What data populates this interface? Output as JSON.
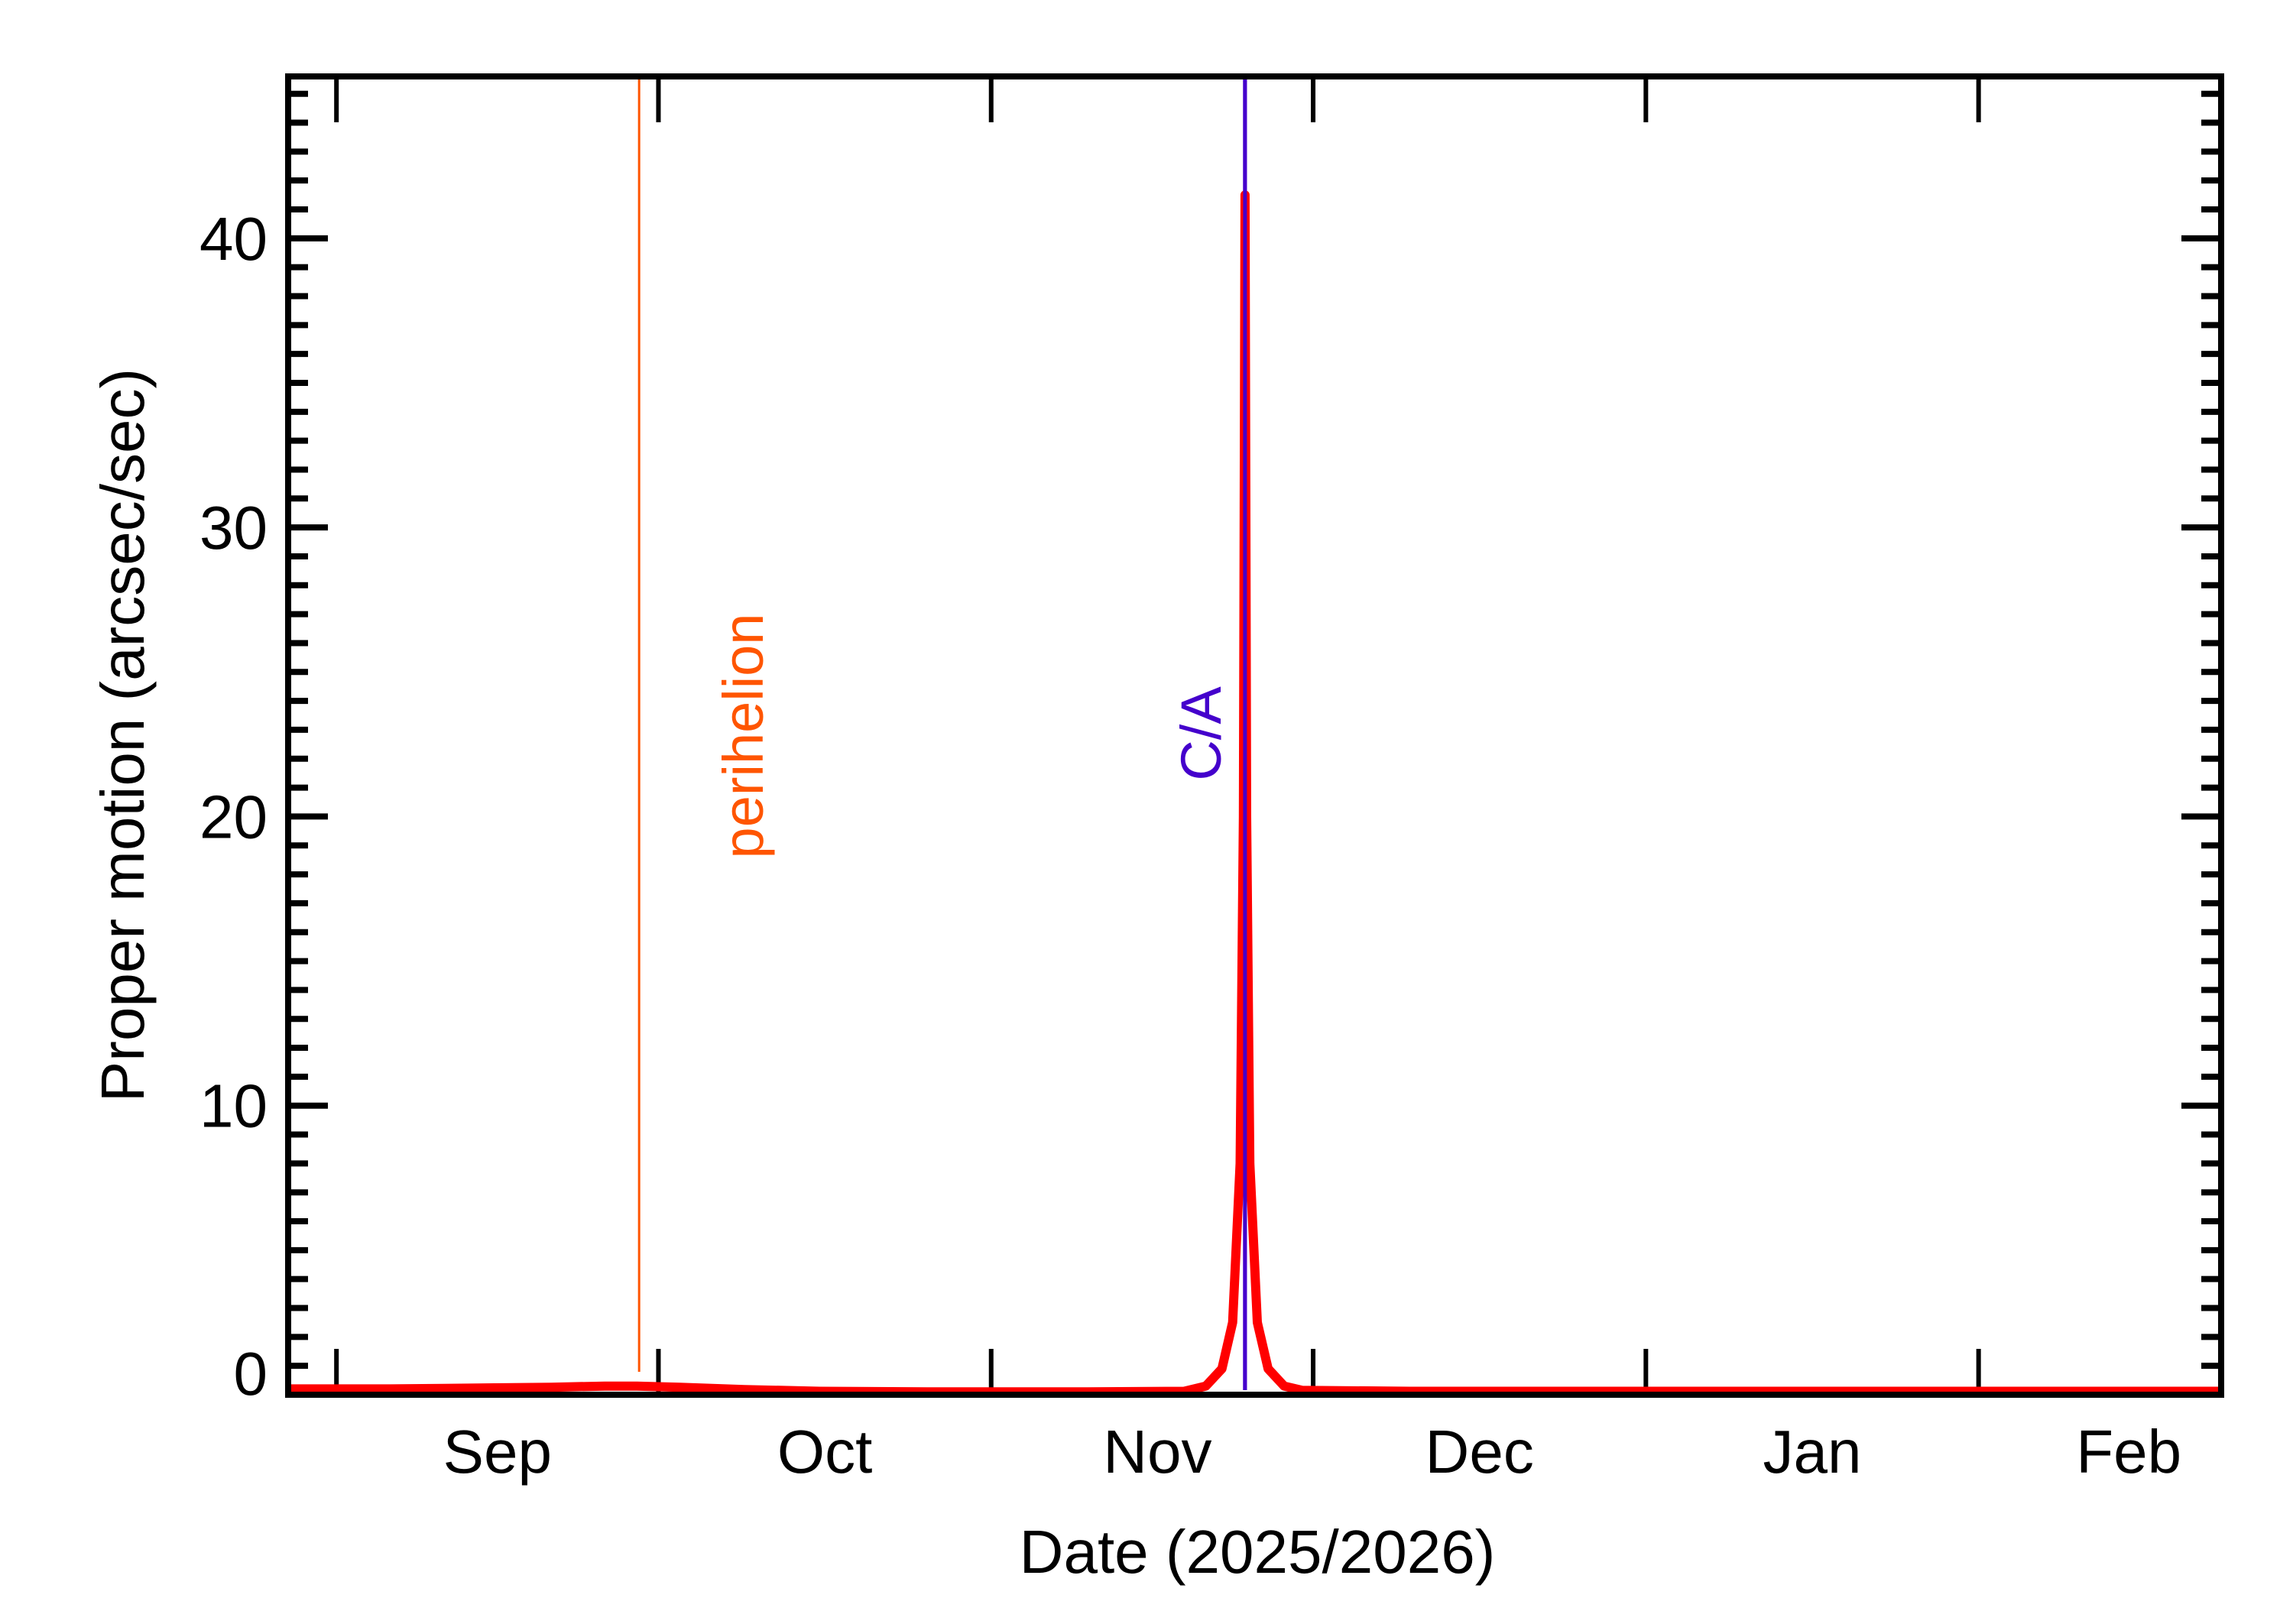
{
  "chart_data": {
    "type": "line",
    "title": "",
    "xlabel": "Date (2025/2026)",
    "ylabel": "Proper motion (arcsec/sec)",
    "x_unit": "days since 2025-09-01",
    "xlim": [
      -4.5,
      175.6
    ],
    "ylim": [
      0,
      45.6
    ],
    "grid": false,
    "legend": null,
    "x_ticks": [
      {
        "day": 0,
        "label": "Sep 1"
      },
      {
        "day": 30,
        "label": "Oct 1"
      },
      {
        "day": 61,
        "label": "Nov 1"
      },
      {
        "day": 91,
        "label": "Dec 1"
      },
      {
        "day": 122,
        "label": "Jan 1"
      },
      {
        "day": 153,
        "label": "Feb 1"
      }
    ],
    "x_tick_labels": [
      {
        "text": "Sep",
        "day": 15
      },
      {
        "text": "Oct",
        "day": 45.5
      },
      {
        "text": "Nov",
        "day": 76.5
      },
      {
        "text": "Dec",
        "day": 106.5
      },
      {
        "text": "Jan",
        "day": 137.5
      },
      {
        "text": "Feb",
        "day": 167
      }
    ],
    "y_ticks": [
      0,
      10,
      20,
      30,
      40
    ],
    "y_minor_step": 1,
    "series": [
      {
        "name": "Proper motion",
        "color": "#ff0000",
        "points": [
          [
            -4.5,
            0.2
          ],
          [
            5,
            0.2
          ],
          [
            10,
            0.22
          ],
          [
            20,
            0.26
          ],
          [
            25,
            0.3
          ],
          [
            28,
            0.3
          ],
          [
            32,
            0.26
          ],
          [
            38,
            0.18
          ],
          [
            45,
            0.12
          ],
          [
            55,
            0.1
          ],
          [
            70,
            0.1
          ],
          [
            79,
            0.12
          ],
          [
            81,
            0.3
          ],
          [
            82.5,
            0.9
          ],
          [
            83.5,
            2.5
          ],
          [
            84.2,
            8.0
          ],
          [
            84.5,
            20.0
          ],
          [
            84.65,
            41.5
          ],
          [
            84.8,
            20.0
          ],
          [
            85.1,
            8.0
          ],
          [
            85.8,
            2.5
          ],
          [
            86.8,
            0.9
          ],
          [
            88.3,
            0.3
          ],
          [
            90,
            0.15
          ],
          [
            100,
            0.12
          ],
          [
            120,
            0.12
          ],
          [
            150,
            0.12
          ],
          [
            175.6,
            0.12
          ]
        ]
      }
    ],
    "annotations": [
      {
        "text": "perihelion",
        "day": 28.2,
        "color": "#ff5500",
        "type": "vline"
      },
      {
        "text": "C/A",
        "day": 84.65,
        "color": "#4400cc",
        "type": "vline"
      }
    ],
    "peak": {
      "day": 84.65,
      "value": 41.5,
      "date_label": "late Nov 2025"
    }
  },
  "labels": {
    "x_axis_title": "Date (2025/2026)",
    "y_axis_title": "Proper motion (arcsec/sec)",
    "perihelion": "perihelion",
    "ca": "C/A"
  }
}
